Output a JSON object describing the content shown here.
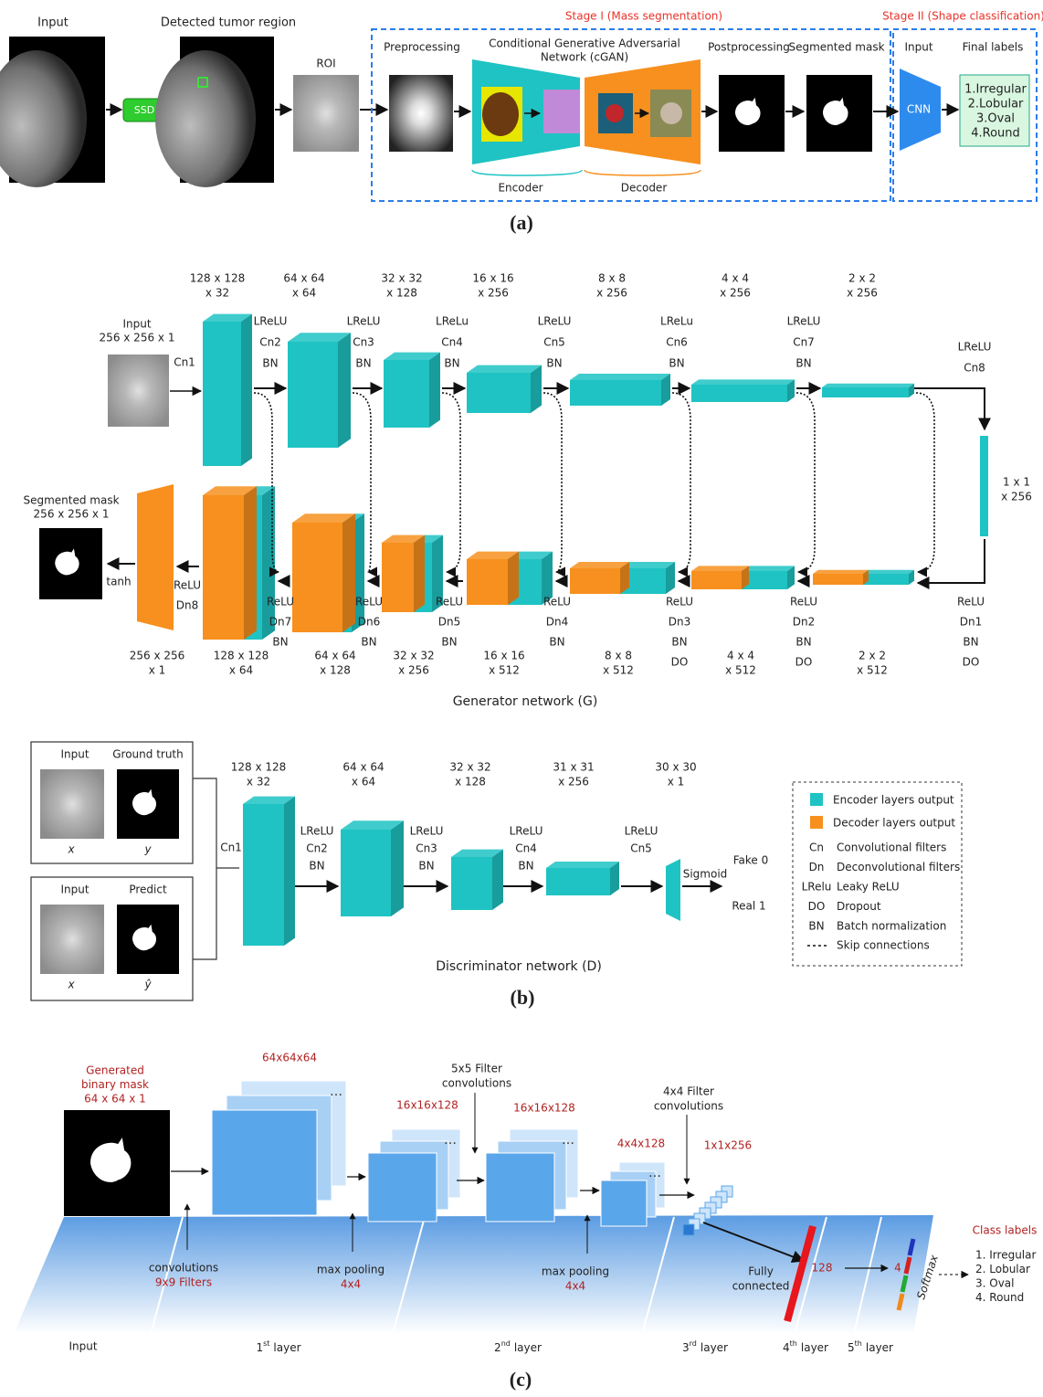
{
  "panel_a": {
    "input": "Input",
    "detected": "Detected tumor region",
    "ssd": "SSD",
    "roi": "ROI",
    "stage_1": "Stage I (Mass segmentation)",
    "stage_2": "Stage II (Shape classification)",
    "preprocessing": "Preprocessing",
    "cgan": [
      "Conditional Generative Adversarial",
      "Network (cGAN)"
    ],
    "postprocessing": "Postprocessing",
    "segmented_mask": "Segmented mask",
    "cnn_input": "Input",
    "final_labels": "Final labels",
    "cnn": "CNN",
    "classes": [
      "1.Irregular",
      "2.Lobular",
      "3.Oval",
      "4.Round"
    ],
    "encoder": "Encoder",
    "decoder": "Decoder",
    "caption": "(a)"
  },
  "panel_b": {
    "generator": {
      "input": [
        "Input",
        "256 x 256 x 1"
      ],
      "first_op": "Cn1",
      "encoder_sizes": [
        [
          "128 x 128",
          "x 32"
        ],
        [
          "64 x 64",
          "x 64"
        ],
        [
          "32 x 32",
          "x 128"
        ],
        [
          "16 x 16",
          "x 256"
        ],
        [
          "8 x 8",
          "x 256"
        ],
        [
          "4 x 4",
          "x 256"
        ],
        [
          "2 x 2",
          "x 256"
        ]
      ],
      "encoder_ops": [
        [
          "LReLU",
          "Cn2",
          "BN"
        ],
        [
          "LReLU",
          "Cn3",
          "BN"
        ],
        [
          "LReLu",
          "Cn4",
          "BN"
        ],
        [
          "LReLU",
          "Cn5",
          "BN"
        ],
        [
          "LReLu",
          "Cn6",
          "BN"
        ],
        [
          "LReLU",
          "Cn7",
          "BN"
        ],
        [
          "LReLU",
          "Cn8"
        ]
      ],
      "bottleneck": [
        "1 x 1",
        "x 256"
      ],
      "decoder_ops": [
        [
          "ReLU",
          "Dn1",
          "BN",
          "DO"
        ],
        [
          "ReLU",
          "Dn2",
          "BN",
          "DO"
        ],
        [
          "ReLU",
          "Dn3",
          "BN",
          "DO"
        ],
        [
          "ReLU",
          "Dn4",
          "BN"
        ],
        [
          "ReLU",
          "Dn5",
          "BN"
        ],
        [
          "ReLU",
          "Dn6",
          "BN"
        ],
        [
          "ReLU",
          "Dn7",
          "BN"
        ],
        [
          "ReLU",
          "Dn8"
        ]
      ],
      "output_activation": "tanh",
      "decoder_sizes": [
        [
          "2 x 2",
          "x 512"
        ],
        [
          "4 x 4",
          "x 512"
        ],
        [
          "8 x 8",
          "x 512"
        ],
        [
          "16 x 16",
          "x 512"
        ],
        [
          "32 x 32",
          "x 256"
        ],
        [
          "64 x 64",
          "x 128"
        ],
        [
          "128 x 128",
          "x 64"
        ],
        [
          "256 x 256",
          "x 1"
        ]
      ],
      "output": [
        "Segmented mask",
        "256 x 256 x 1"
      ],
      "caption": "Generator network (G)"
    },
    "discriminator": {
      "pairs": [
        {
          "left": "Input",
          "right": "Ground truth",
          "left_var": "x",
          "right_var": "y"
        },
        {
          "left": "Input",
          "right": "Predict",
          "left_var": "x",
          "right_var": "ŷ"
        }
      ],
      "first_op": "Cn1",
      "sizes": [
        [
          "128 x 128",
          "x 32"
        ],
        [
          "64 x 64",
          "x 64"
        ],
        [
          "32 x 32",
          "x 128"
        ],
        [
          "31 x 31",
          "x 256"
        ],
        [
          "30 x 30",
          "x 1"
        ]
      ],
      "ops": [
        [
          "LReLU",
          "Cn2",
          "BN"
        ],
        [
          "LReLU",
          "Cn3",
          "BN"
        ],
        [
          "LReLU",
          "Cn4",
          "BN"
        ],
        [
          "LReLU",
          "Cn5"
        ]
      ],
      "activation": "Sigmoid",
      "outputs": [
        "Fake 0",
        "Real 1"
      ],
      "caption": "Discriminator network (D)"
    },
    "legend": {
      "colors": [
        {
          "label": "Encoder layers output",
          "color": "#1fc3c3"
        },
        {
          "label": "Decoder layers output",
          "color": "#f7901e"
        }
      ],
      "abbreviations": [
        {
          "abbr": "Cn",
          "meaning": "Convolutional filters"
        },
        {
          "abbr": "Dn",
          "meaning": "Deconvolutional filters"
        },
        {
          "abbr": "LRelu",
          "meaning": "Leaky ReLU"
        },
        {
          "abbr": "DO",
          "meaning": "Dropout"
        },
        {
          "abbr": "BN",
          "meaning": "Batch normalization"
        }
      ],
      "skip": "Skip connections"
    },
    "caption": "(b)"
  },
  "panel_c": {
    "input_title": [
      "Generated",
      "binary mask",
      "64 x 64 x 1"
    ],
    "sizes": [
      "64x64x64",
      "16x16x128",
      "16x16x128",
      "4x4x128",
      "1x1x256"
    ],
    "filter_notes": [
      [
        "5x5 Filter",
        "convolutions"
      ],
      [
        "4x4 Filter",
        "convolutions"
      ]
    ],
    "operations": [
      [
        "convolutions",
        "9x9 Filters"
      ],
      [
        "max pooling",
        "4x4"
      ],
      [
        "max pooling",
        "4x4"
      ]
    ],
    "fully_connected": [
      "Fully",
      "connected"
    ],
    "fc_size": "128",
    "output_size": "4",
    "softmax": "Softmax",
    "class_title": "Class labels",
    "classes": [
      "1. Irregular",
      "2. Lobular",
      "3. Oval",
      "4. Round"
    ],
    "input_label": "Input",
    "layers": [
      {
        "number": "1",
        "suffix": "st",
        "word": "layer"
      },
      {
        "number": "2",
        "suffix": "nd",
        "word": "layer"
      },
      {
        "number": "3",
        "suffix": "rd",
        "word": "layer"
      },
      {
        "number": "4",
        "suffix": "th",
        "word": "layer"
      },
      {
        "number": "5",
        "suffix": "th",
        "word": "layer"
      }
    ],
    "caption": "(c)"
  }
}
